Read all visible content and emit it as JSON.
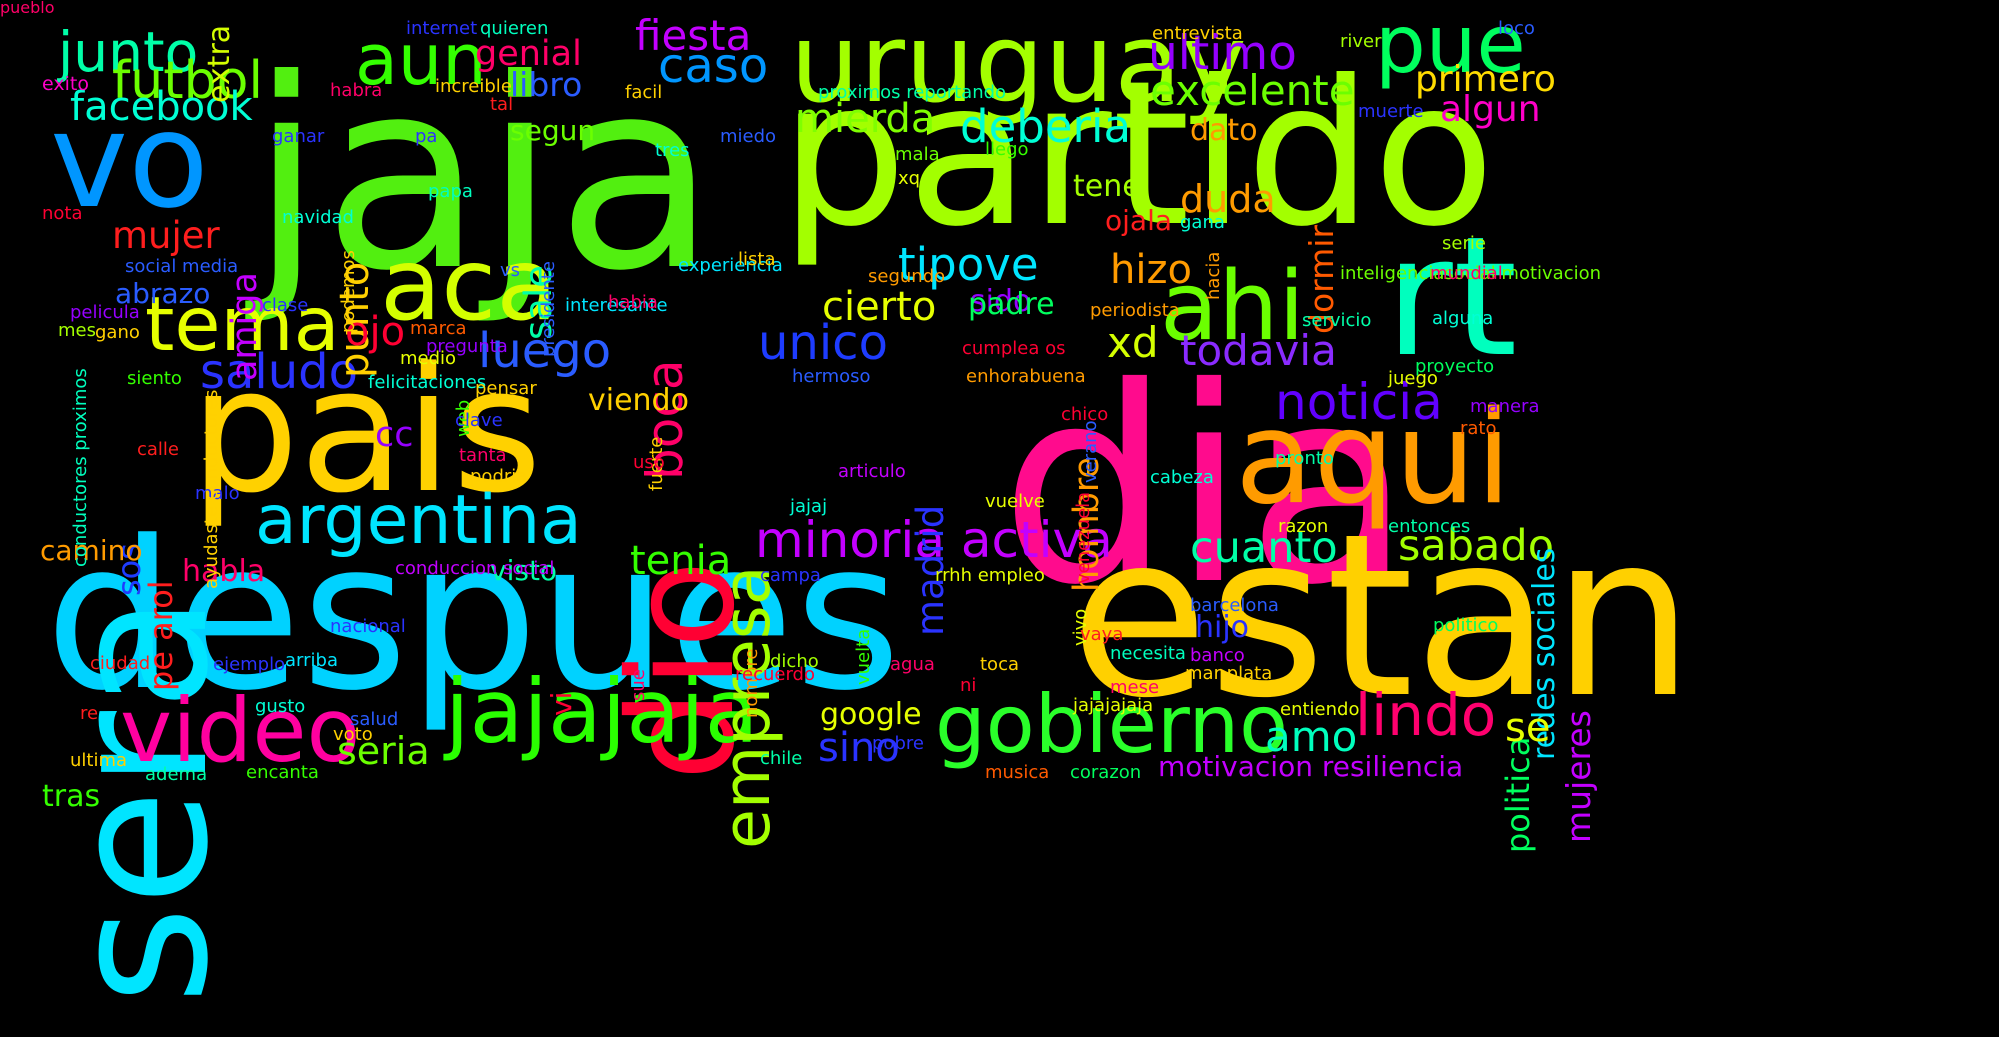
{
  "background": "#000000",
  "words": [
    {
      "text": "dia",
      "color": "#ff0b8d",
      "vertical": false
    },
    {
      "text": "jaja",
      "color": "#52ef10",
      "vertical": false
    },
    {
      "text": "estan",
      "color": "#ffd000",
      "vertical": false
    },
    {
      "text": "despues",
      "color": "#00d2ff",
      "vertical": false
    },
    {
      "text": "partido",
      "color": "#a3ff00",
      "vertical": false
    },
    {
      "text": "pais",
      "color": "#ffd100",
      "vertical": false
    },
    {
      "text": "rt",
      "color": "#00ffbe",
      "vertical": false
    },
    {
      "text": "sera",
      "color": "#00e5ff",
      "vertical": true
    },
    {
      "text": "dio",
      "color": "#ff0033",
      "vertical": true
    },
    {
      "text": "vo",
      "color": "#0096ff",
      "vertical": false
    },
    {
      "text": "aqui",
      "color": "#ff9b00",
      "vertical": false
    },
    {
      "text": "uruguay",
      "color": "#a3ff00",
      "vertical": false
    },
    {
      "text": "jajajaja",
      "color": "#2aff00",
      "vertical": false
    },
    {
      "text": "video",
      "color": "#ff00a0",
      "vertical": false
    },
    {
      "text": "aca",
      "color": "#d4ff00",
      "vertical": false
    },
    {
      "text": "gobierno",
      "color": "#2aff2a",
      "vertical": false
    },
    {
      "text": "argentina",
      "color": "#00e5ff",
      "vertical": false
    },
    {
      "text": "ahi",
      "color": "#6bff00",
      "vertical": false
    },
    {
      "text": "pue",
      "color": "#00ff5e",
      "vertical": false
    },
    {
      "text": "aun",
      "color": "#34ff00",
      "vertical": false
    },
    {
      "text": "tema",
      "color": "#e6ff00",
      "vertical": false
    },
    {
      "text": "empresa",
      "color": "#a3ff00",
      "vertical": true
    },
    {
      "text": "minoria activa",
      "color": "#c300ff",
      "vertical": false
    },
    {
      "text": "junto",
      "color": "#00ffa8",
      "vertical": false
    },
    {
      "text": "lindo",
      "color": "#ff006e",
      "vertical": false
    },
    {
      "text": "saludo",
      "color": "#2a33ff",
      "vertical": false
    },
    {
      "text": "futbol",
      "color": "#6bff00",
      "vertical": false
    },
    {
      "text": "boca",
      "color": "#ff0068",
      "vertical": true
    },
    {
      "text": "noticia",
      "color": "#6100ff",
      "vertical": false
    },
    {
      "text": "mierda",
      "color": "#7fff00",
      "vertical": false
    },
    {
      "text": "deberia",
      "color": "#00ffd5",
      "vertical": false
    },
    {
      "text": "cuanto",
      "color": "#00ffa8",
      "vertical": false
    },
    {
      "text": "sabado",
      "color": "#a3ff00",
      "vertical": false
    },
    {
      "text": "ultimo",
      "color": "#9500ff",
      "vertical": false
    },
    {
      "text": "fiesta",
      "color": "#c300ff",
      "vertical": false
    },
    {
      "text": "caso",
      "color": "#0096ff",
      "vertical": false
    },
    {
      "text": "facebook",
      "color": "#00ffd5",
      "vertical": false
    },
    {
      "text": "excelente",
      "color": "#6bff00",
      "vertical": false
    },
    {
      "text": "primero",
      "color": "#ffdc00",
      "vertical": false
    },
    {
      "text": "algun",
      "color": "#ff00c8",
      "vertical": false
    },
    {
      "text": "luego",
      "color": "#2a5cff",
      "vertical": false
    },
    {
      "text": "unico",
      "color": "#1e3cff",
      "vertical": false
    },
    {
      "text": "tipove",
      "color": "#00e5ff",
      "vertical": false
    },
    {
      "text": "todavia",
      "color": "#8a2bff",
      "vertical": false
    },
    {
      "text": "mujer",
      "color": "#ff1e1e",
      "vertical": false
    },
    {
      "text": "amiga",
      "color": "#c300ff",
      "vertical": true
    },
    {
      "text": "punto",
      "color": "#ffd000",
      "vertical": true
    },
    {
      "text": "hombre",
      "color": "#ff9b00",
      "vertical": true
    },
    {
      "text": "madrid",
      "color": "#2a33ff",
      "vertical": true
    },
    {
      "text": "amo",
      "color": "#00ffbe",
      "vertical": false
    },
    {
      "text": "tenia",
      "color": "#34ff00",
      "vertical": false
    },
    {
      "text": "hizo",
      "color": "#ff9b00",
      "vertical": false
    },
    {
      "text": "cierto",
      "color": "#e6ff00",
      "vertical": false
    },
    {
      "text": "sido",
      "color": "#9500ff",
      "vertical": false
    },
    {
      "text": "xd",
      "color": "#d4ff00",
      "vertical": false
    },
    {
      "text": "ojo",
      "color": "#ff0033",
      "vertical": false
    },
    {
      "text": "sale",
      "color": "#00ffa8",
      "vertical": true
    },
    {
      "text": "duda",
      "color": "#ff9b00",
      "vertical": false
    },
    {
      "text": "sos",
      "color": "#1e3cff",
      "vertical": true
    },
    {
      "text": "cc",
      "color": "#9500ff",
      "vertical": false
    },
    {
      "text": "pe arol",
      "color": "#ff1e1e",
      "vertical": true
    },
    {
      "text": "genial",
      "color": "#ff0068",
      "vertical": false
    },
    {
      "text": "libro",
      "color": "#2a5cff",
      "vertical": false
    },
    {
      "text": "segun",
      "color": "#6bff00",
      "vertical": false
    },
    {
      "text": "dato",
      "color": "#ff9b00",
      "vertical": false
    },
    {
      "text": "tene",
      "color": "#a3ff00",
      "vertical": false
    },
    {
      "text": "ojala",
      "color": "#ff1e1e",
      "vertical": false
    },
    {
      "text": "dormir",
      "color": "#ff5a00",
      "vertical": true
    },
    {
      "text": "padre",
      "color": "#00ff5e",
      "vertical": false
    },
    {
      "text": "hijo",
      "color": "#2a33ff",
      "vertical": false
    },
    {
      "text": "mujeres",
      "color": "#c300ff",
      "vertical": true
    },
    {
      "text": "politica",
      "color": "#00ff5e",
      "vertical": true
    },
    {
      "text": "redes sociales",
      "color": "#00e5ff",
      "vertical": true
    },
    {
      "text": "se",
      "color": "#e6ff00",
      "vertical": false
    },
    {
      "text": "seria",
      "color": "#6bff00",
      "vertical": false
    },
    {
      "text": "sino",
      "color": "#2a33ff",
      "vertical": false
    },
    {
      "text": "google",
      "color": "#e6ff00",
      "vertical": false
    },
    {
      "text": "motivacion resiliencia",
      "color": "#c300ff",
      "vertical": false
    },
    {
      "text": "habla",
      "color": "#ff0068",
      "vertical": false
    },
    {
      "text": "visto",
      "color": "#00ffa8",
      "vertical": false
    },
    {
      "text": "vi",
      "color": "#ff0033",
      "vertical": true
    },
    {
      "text": "viendo",
      "color": "#ffd000",
      "vertical": false
    },
    {
      "text": "abrazo",
      "color": "#2a5cff",
      "vertical": false
    },
    {
      "text": "camino",
      "color": "#ff9b00",
      "vertical": false
    },
    {
      "text": "tras",
      "color": "#34ff00",
      "vertical": false
    },
    {
      "text": "extra",
      "color": "#d4ff00",
      "vertical": true
    },
    {
      "text": "exito",
      "color": "#ff00c8",
      "vertical": false
    },
    {
      "text": "habra",
      "color": "#ff0068",
      "vertical": false
    },
    {
      "text": "increible",
      "color": "#ffd000",
      "vertical": false
    },
    {
      "text": "quieren",
      "color": "#00ffbe",
      "vertical": false
    },
    {
      "text": "internet",
      "color": "#2a33ff",
      "vertical": false
    },
    {
      "text": "tal",
      "color": "#ff1e1e",
      "vertical": false
    },
    {
      "text": "facil",
      "color": "#ffd000",
      "vertical": false
    },
    {
      "text": "proximos reportando",
      "color": "#00ffa8",
      "vertical": false
    },
    {
      "text": "entrevista",
      "color": "#ffd000",
      "vertical": false
    },
    {
      "text": "river",
      "color": "#a3ff00",
      "vertical": false
    },
    {
      "text": "loco",
      "color": "#2a5cff",
      "vertical": false
    },
    {
      "text": "muerte",
      "color": "#2a33ff",
      "vertical": false
    },
    {
      "text": "ganar",
      "color": "#2a33ff",
      "vertical": false
    },
    {
      "text": "pa",
      "color": "#2a33ff",
      "vertical": false
    },
    {
      "text": "miedo",
      "color": "#2a5cff",
      "vertical": false
    },
    {
      "text": "tres",
      "color": "#00ffd5",
      "vertical": false
    },
    {
      "text": "llego",
      "color": "#34ff00",
      "vertical": false
    },
    {
      "text": "mala",
      "color": "#6bff00",
      "vertical": false
    },
    {
      "text": "xq",
      "color": "#e6ff00",
      "vertical": false
    },
    {
      "text": "papa",
      "color": "#00ffbe",
      "vertical": false
    },
    {
      "text": "nota",
      "color": "#ff0033",
      "vertical": false
    },
    {
      "text": "navidad",
      "color": "#00ffd5",
      "vertical": false
    },
    {
      "text": "vs",
      "color": "#2a5cff",
      "vertical": false
    },
    {
      "text": "presidente",
      "color": "#2a5cff",
      "vertical": true
    },
    {
      "text": "podemos",
      "color": "#ffd000",
      "vertical": true
    },
    {
      "text": "social media",
      "color": "#2a5cff",
      "vertical": false
    },
    {
      "text": "experiencia",
      "color": "#00e5ff",
      "vertical": false
    },
    {
      "text": "lista",
      "color": "#ffd000",
      "vertical": false
    },
    {
      "text": "segundo",
      "color": "#ff9b00",
      "vertical": false
    },
    {
      "text": "gana",
      "color": "#00ffd5",
      "vertical": false
    },
    {
      "text": "serie",
      "color": "#a3ff00",
      "vertical": false
    },
    {
      "text": "hacia",
      "color": "#ff9b00",
      "vertical": true
    },
    {
      "text": "inteligenciasocial motivacion",
      "color": "#6bff00",
      "vertical": false
    },
    {
      "text": "mundial",
      "color": "#ff0068",
      "vertical": false
    },
    {
      "text": "pelicula",
      "color": "#9500ff",
      "vertical": false
    },
    {
      "text": "clase",
      "color": "#2a33ff",
      "vertical": false
    },
    {
      "text": "interesante",
      "color": "#00e5ff",
      "vertical": false
    },
    {
      "text": "habia",
      "color": "#ff0068",
      "vertical": false
    },
    {
      "text": "periodista",
      "color": "#ff9b00",
      "vertical": false
    },
    {
      "text": "servicio",
      "color": "#00ffa8",
      "vertical": false
    },
    {
      "text": "alguna",
      "color": "#00ffd5",
      "vertical": false
    },
    {
      "text": "mes",
      "color": "#a3ff00",
      "vertical": false
    },
    {
      "text": "gano",
      "color": "#ffd000",
      "vertical": false
    },
    {
      "text": "marca",
      "color": "#ff5a00",
      "vertical": false
    },
    {
      "text": "pregunta",
      "color": "#9500ff",
      "vertical": false
    },
    {
      "text": "medio",
      "color": "#e6ff00",
      "vertical": false
    },
    {
      "text": "cumplea os",
      "color": "#ff0033",
      "vertical": false
    },
    {
      "text": "chico",
      "color": "#ff0033",
      "vertical": false
    },
    {
      "text": "conductores proximos",
      "color": "#00ffbe",
      "vertical": true
    },
    {
      "text": "siento",
      "color": "#34ff00",
      "vertical": false
    },
    {
      "text": "malo",
      "color": "#2a33ff",
      "vertical": false
    },
    {
      "text": "ayudaste conductores",
      "color": "#ffd000",
      "vertical": true
    },
    {
      "text": "felicitaciones",
      "color": "#00ffd5",
      "vertical": false
    },
    {
      "text": "pensar",
      "color": "#ffd000",
      "vertical": false
    },
    {
      "text": "hermoso",
      "color": "#2a5cff",
      "vertical": false
    },
    {
      "text": "enhorabuena",
      "color": "#ff9b00",
      "vertical": false
    },
    {
      "text": "juego",
      "color": "#e6ff00",
      "vertical": false
    },
    {
      "text": "proyecto",
      "color": "#00ff5e",
      "vertical": false
    },
    {
      "text": "manera",
      "color": "#9500ff",
      "vertical": false
    },
    {
      "text": "rato",
      "color": "#ff5a00",
      "vertical": false
    },
    {
      "text": "calle",
      "color": "#ff1e1e",
      "vertical": false
    },
    {
      "text": "web",
      "color": "#34ff00",
      "vertical": true
    },
    {
      "text": "clave",
      "color": "#2a33ff",
      "vertical": false
    },
    {
      "text": "vuelve",
      "color": "#e6ff00",
      "vertical": false
    },
    {
      "text": "venezuela",
      "color": "#ff0033",
      "vertical": true
    },
    {
      "text": "verano",
      "color": "#2a5cff",
      "vertical": true
    },
    {
      "text": "pronto",
      "color": "#00ffa8",
      "vertical": false
    },
    {
      "text": "fuerte",
      "color": "#ffd000",
      "vertical": true
    },
    {
      "text": "tanta",
      "color": "#ff0068",
      "vertical": false
    },
    {
      "text": "uso",
      "color": "#ff0033",
      "vertical": false
    },
    {
      "text": "podria",
      "color": "#ffd000",
      "vertical": false
    },
    {
      "text": "articulo",
      "color": "#c300ff",
      "vertical": false
    },
    {
      "text": "cabeza",
      "color": "#00ffd5",
      "vertical": false
    },
    {
      "text": "jajaj",
      "color": "#00ffd5",
      "vertical": false
    },
    {
      "text": "razon",
      "color": "#e6ff00",
      "vertical": false
    },
    {
      "text": "entonces",
      "color": "#00ffa8",
      "vertical": false
    },
    {
      "text": "conduccion social",
      "color": "#c300ff",
      "vertical": false
    },
    {
      "text": "campa",
      "color": "#2a33ff",
      "vertical": false
    },
    {
      "text": "rrhh empleo",
      "color": "#e6ff00",
      "vertical": false
    },
    {
      "text": "nacional",
      "color": "#2a33ff",
      "vertical": false
    },
    {
      "text": "ciudad",
      "color": "#ff1e1e",
      "vertical": false
    },
    {
      "text": "sue",
      "color": "#ff0068",
      "vertical": true
    },
    {
      "text": "nombre",
      "color": "#ff9b00",
      "vertical": true
    },
    {
      "text": "vuelta",
      "color": "#34ff00",
      "vertical": true
    },
    {
      "text": "vivo",
      "color": "#e6ff00",
      "vertical": true
    },
    {
      "text": "barcelona",
      "color": "#2a5cff",
      "vertical": false
    },
    {
      "text": "politico",
      "color": "#00ff5e",
      "vertical": false
    },
    {
      "text": "vaya",
      "color": "#ff1e1e",
      "vertical": false
    },
    {
      "text": "necesita",
      "color": "#00ffbe",
      "vertical": false
    },
    {
      "text": "banco",
      "color": "#c300ff",
      "vertical": false
    },
    {
      "text": "ejemplo",
      "color": "#2a33ff",
      "vertical": false
    },
    {
      "text": "arriba",
      "color": "#00e5ff",
      "vertical": false
    },
    {
      "text": "dicho",
      "color": "#a3ff00",
      "vertical": false
    },
    {
      "text": "agua",
      "color": "#ff0068",
      "vertical": false
    },
    {
      "text": "toca",
      "color": "#ffd000",
      "vertical": false
    },
    {
      "text": "mar plata",
      "color": "#ffd000",
      "vertical": false
    },
    {
      "text": "recuerdo",
      "color": "#ff0033",
      "vertical": false
    },
    {
      "text": "ni",
      "color": "#ff0033",
      "vertical": false
    },
    {
      "text": "mese",
      "color": "#ff0068",
      "vertical": false
    },
    {
      "text": "gusto",
      "color": "#00ffd5",
      "vertical": false
    },
    {
      "text": "jajajajaja",
      "color": "#e6ff00",
      "vertical": false
    },
    {
      "text": "entiendo",
      "color": "#e6ff00",
      "vertical": false
    },
    {
      "text": "re",
      "color": "#ff1e1e",
      "vertical": false
    },
    {
      "text": "salud",
      "color": "#2a5cff",
      "vertical": false
    },
    {
      "text": "voto",
      "color": "#ffd000",
      "vertical": false
    },
    {
      "text": "pobre",
      "color": "#2a33ff",
      "vertical": false
    },
    {
      "text": "ultima",
      "color": "#ffd000",
      "vertical": false
    },
    {
      "text": "chile",
      "color": "#00ffa8",
      "vertical": false
    },
    {
      "text": "adema",
      "color": "#00ffa8",
      "vertical": false
    },
    {
      "text": "encanta",
      "color": "#34ff00",
      "vertical": false
    },
    {
      "text": "musica",
      "color": "#ff5a00",
      "vertical": false
    },
    {
      "text": "corazon",
      "color": "#00ff5e",
      "vertical": false
    },
    {
      "text": "pueblo",
      "color": "#ff0068",
      "vertical": false
    }
  ]
}
